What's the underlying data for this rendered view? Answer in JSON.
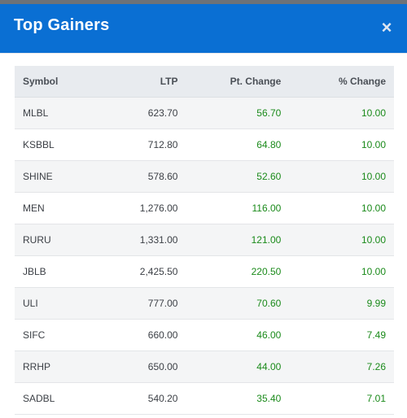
{
  "modal": {
    "title": "Top Gainers",
    "close_symbol": "×"
  },
  "table": {
    "headers": {
      "symbol": "Symbol",
      "ltp": "LTP",
      "pt_change": "Pt. Change",
      "pct_change": "% Change"
    },
    "rows": [
      {
        "symbol": "MLBL",
        "ltp": "623.70",
        "pt_change": "56.70",
        "pct_change": "10.00"
      },
      {
        "symbol": "KSBBL",
        "ltp": "712.80",
        "pt_change": "64.80",
        "pct_change": "10.00"
      },
      {
        "symbol": "SHINE",
        "ltp": "578.60",
        "pt_change": "52.60",
        "pct_change": "10.00"
      },
      {
        "symbol": "MEN",
        "ltp": "1,276.00",
        "pt_change": "116.00",
        "pct_change": "10.00"
      },
      {
        "symbol": "RURU",
        "ltp": "1,331.00",
        "pt_change": "121.00",
        "pct_change": "10.00"
      },
      {
        "symbol": "JBLB",
        "ltp": "2,425.50",
        "pt_change": "220.50",
        "pct_change": "10.00"
      },
      {
        "symbol": "ULI",
        "ltp": "777.00",
        "pt_change": "70.60",
        "pct_change": "9.99"
      },
      {
        "symbol": "SIFC",
        "ltp": "660.00",
        "pt_change": "46.00",
        "pct_change": "7.49"
      },
      {
        "symbol": "RRHP",
        "ltp": "650.00",
        "pt_change": "44.00",
        "pct_change": "7.26"
      },
      {
        "symbol": "SADBL",
        "ltp": "540.20",
        "pt_change": "35.40",
        "pct_change": "7.01"
      }
    ]
  },
  "colors": {
    "header_blue": "#0a6fd3",
    "gain_green": "#1a8a1a"
  }
}
